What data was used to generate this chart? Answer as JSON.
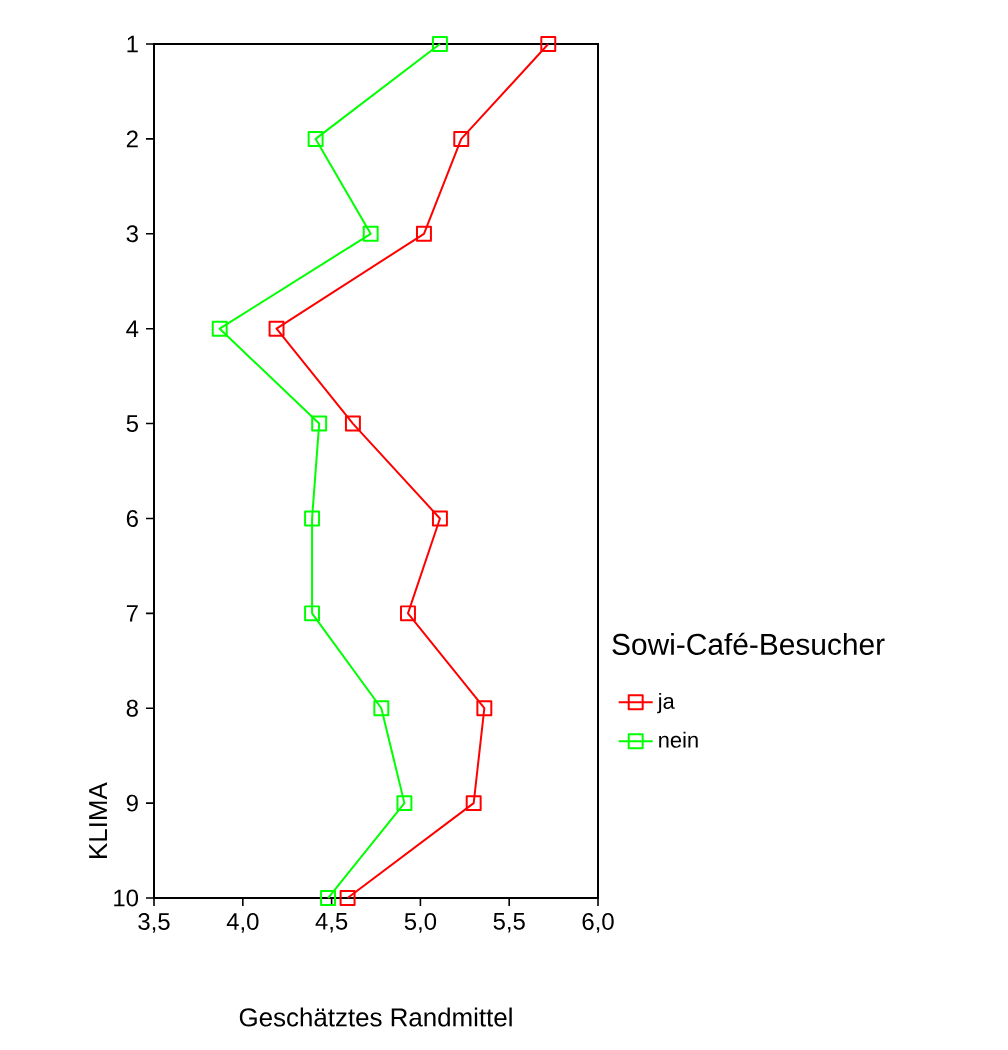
{
  "chart_data": {
    "type": "line",
    "orientation": "horizontal",
    "xlabel": "Geschätztes Randmittel",
    "ylabel": "KLIMA",
    "legend_title": "Sowi-Café-Besucher",
    "legend": "right",
    "marker": "square",
    "line_style": "solid",
    "grid": false,
    "categories": [
      "1",
      "2",
      "3",
      "4",
      "5",
      "6",
      "7",
      "8",
      "9",
      "10"
    ],
    "xlim": [
      3.5,
      6.0
    ],
    "xticks": [
      {
        "value": 3.5,
        "label": "3,5"
      },
      {
        "value": 4.0,
        "label": "4,0"
      },
      {
        "value": 4.5,
        "label": "4,5"
      },
      {
        "value": 5.0,
        "label": "5,0"
      },
      {
        "value": 5.5,
        "label": "5,5"
      },
      {
        "value": 6.0,
        "label": "6,0"
      }
    ],
    "series": [
      {
        "name": "ja",
        "color": "#ff0000",
        "values": [
          5.72,
          5.23,
          5.02,
          4.19,
          4.62,
          5.11,
          4.93,
          5.36,
          5.3,
          4.59
        ]
      },
      {
        "name": "nein",
        "color": "#00ff00",
        "values": [
          5.11,
          4.41,
          4.72,
          3.87,
          4.43,
          4.39,
          4.39,
          4.78,
          4.91,
          4.48
        ]
      }
    ]
  }
}
